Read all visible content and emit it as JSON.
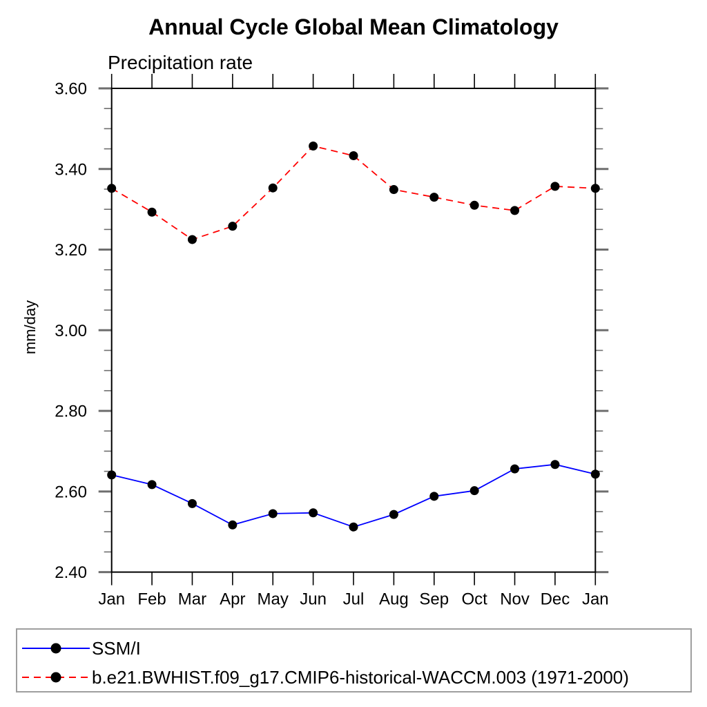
{
  "title": "Annual Cycle Global Mean Climatology",
  "subtitle": "Precipitation rate",
  "ylabel": "mm/day",
  "colors": {
    "axis_frame": "#000000",
    "major_tick": "#6e6e6e",
    "minor_tick": "#6e6e6e",
    "month_tick": "#000000",
    "marker": "#000000",
    "legend_border": "#9e9e9e",
    "series_blue": "#0000ff",
    "series_red": "#ff0000"
  },
  "chart_data": {
    "type": "line",
    "title": "Annual Cycle Global Mean Climatology",
    "subtitle": "Precipitation rate",
    "xlabel": "",
    "ylabel": "mm/day",
    "ylim": [
      2.4,
      3.6
    ],
    "y_major_ticks": [
      "3.60",
      "3.40",
      "3.20",
      "3.00",
      "2.80",
      "2.60",
      "2.40"
    ],
    "y_major_step": 0.2,
    "y_minor_step": 0.05,
    "grid": false,
    "legend_position": "bottom-left-box",
    "categories": [
      "Jan",
      "Feb",
      "Mar",
      "Apr",
      "May",
      "Jun",
      "Jul",
      "Aug",
      "Sep",
      "Oct",
      "Nov",
      "Dec",
      "Jan"
    ],
    "marker": {
      "shape": "circle",
      "color": "#000000",
      "radius": 6.5
    },
    "series": [
      {
        "name": "SSM/I",
        "color": "#0000ff",
        "style": "solid",
        "values": [
          2.641,
          2.617,
          2.57,
          2.517,
          2.545,
          2.547,
          2.512,
          2.543,
          2.588,
          2.602,
          2.656,
          2.667,
          2.643
        ]
      },
      {
        "name": "b.e21.BWHIST.f09_g17.CMIP6-historical-WACCM.003 (1971-2000)",
        "color": "#ff0000",
        "style": "dashed",
        "values": [
          3.352,
          3.293,
          3.225,
          3.258,
          3.353,
          3.457,
          3.433,
          3.349,
          3.33,
          3.31,
          3.297,
          3.357,
          3.352
        ]
      }
    ]
  }
}
